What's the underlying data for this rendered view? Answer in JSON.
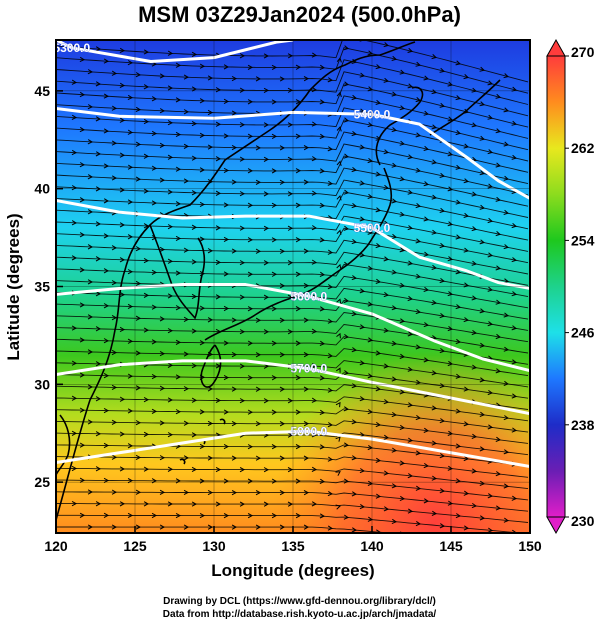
{
  "title": "MSM 03Z29Jan2024 (500.0hPa)",
  "credits": {
    "line1": "Drawing by DCL (https://www.gfd-dennou.org/library/dcl/)",
    "line2": "Data from http://database.rish.kyoto-u.ac.jp/arch/jmadata/"
  },
  "chart_data": {
    "type": "heatmap",
    "title": "MSM 03Z29Jan2024 (500.0hPa)",
    "xlabel": "Longitude (degrees)",
    "ylabel": "Latitude  (degrees)",
    "xlim": [
      120,
      150
    ],
    "ylim": [
      22.4,
      47.6
    ],
    "x_ticks": [
      "120",
      "125",
      "130",
      "135",
      "140",
      "145",
      "150"
    ],
    "y_ticks": [
      "25",
      "30",
      "35",
      "40",
      "45"
    ],
    "colorbar": {
      "min": 230,
      "max": 270,
      "tick_labels": [
        "230",
        "238",
        "246",
        "254",
        "262",
        "270"
      ],
      "stops": [
        {
          "value": 230,
          "color": "#e01ec8"
        },
        {
          "value": 234,
          "color": "#6a1eb4"
        },
        {
          "value": 238,
          "color": "#1e2cc8"
        },
        {
          "value": 242,
          "color": "#1e78ff"
        },
        {
          "value": 246,
          "color": "#1ee0e8"
        },
        {
          "value": 250,
          "color": "#1ed28c"
        },
        {
          "value": 254,
          "color": "#1ec81e"
        },
        {
          "value": 258,
          "color": "#8cdc1e"
        },
        {
          "value": 262,
          "color": "#e8e81e"
        },
        {
          "value": 266,
          "color": "#ff8c1e"
        },
        {
          "value": 270,
          "color": "#ff3c3c"
        }
      ]
    },
    "contours": [
      {
        "label": "5300.0",
        "points": [
          [
            120,
            47.6
          ],
          [
            121,
            47.2
          ],
          [
            126,
            46.5
          ],
          [
            130,
            46.7
          ],
          [
            134,
            47.5
          ],
          [
            135,
            47.6
          ]
        ]
      },
      {
        "label": "5400.0",
        "points": [
          [
            120,
            44.1
          ],
          [
            124,
            43.7
          ],
          [
            130,
            43.6
          ],
          [
            135,
            43.9
          ],
          [
            140,
            43.8
          ],
          [
            143,
            43.3
          ],
          [
            146,
            41.6
          ],
          [
            148,
            40.4
          ],
          [
            150,
            39.5
          ]
        ]
      },
      {
        "label": "5500.0",
        "points": [
          [
            120,
            39.4
          ],
          [
            124,
            38.8
          ],
          [
            128,
            38.5
          ],
          [
            132,
            38.6
          ],
          [
            136,
            38.6
          ],
          [
            140,
            38.0
          ],
          [
            143,
            36.5
          ],
          [
            146,
            35.8
          ],
          [
            148,
            35.2
          ],
          [
            150,
            34.9
          ]
        ]
      },
      {
        "label": "5600.0",
        "points": [
          [
            120,
            34.6
          ],
          [
            124,
            34.9
          ],
          [
            128,
            35.1
          ],
          [
            132,
            35.1
          ],
          [
            136,
            34.5
          ],
          [
            140,
            33.6
          ],
          [
            144,
            32.2
          ],
          [
            147,
            31.3
          ],
          [
            150,
            30.7
          ]
        ]
      },
      {
        "label": "5700.0",
        "points": [
          [
            120,
            30.5
          ],
          [
            124,
            31.0
          ],
          [
            128,
            31.2
          ],
          [
            132,
            31.2
          ],
          [
            136,
            30.8
          ],
          [
            140,
            30.1
          ],
          [
            145,
            29.3
          ],
          [
            150,
            28.5
          ]
        ]
      },
      {
        "label": "5800.0",
        "points": [
          [
            120,
            26.0
          ],
          [
            124,
            26.5
          ],
          [
            128,
            27.0
          ],
          [
            132,
            27.5
          ],
          [
            136,
            27.6
          ],
          [
            140,
            27.2
          ],
          [
            145,
            26.5
          ],
          [
            150,
            25.8
          ]
        ]
      }
    ],
    "grid": true
  }
}
